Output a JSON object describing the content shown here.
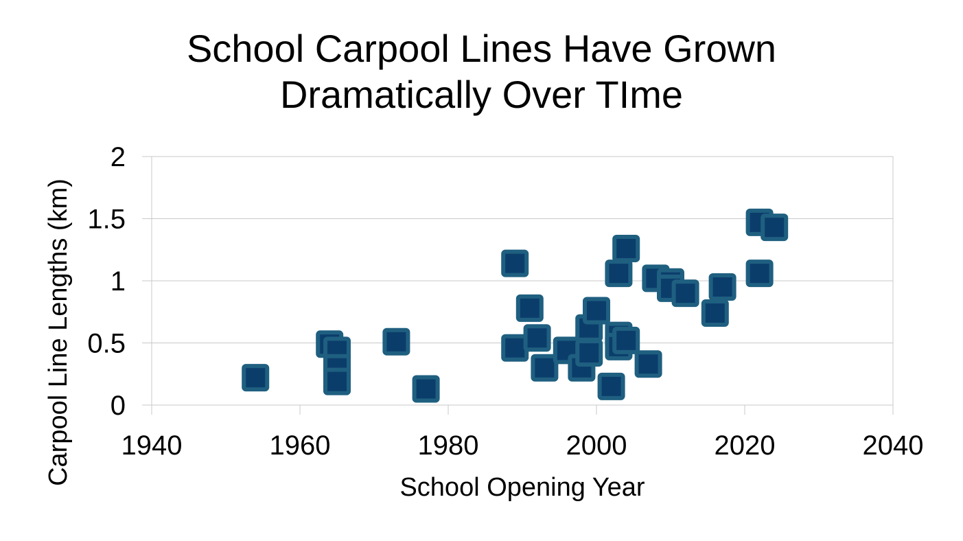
{
  "chart_data": {
    "type": "scatter",
    "title_lines": [
      "School Carpool Lines Have Grown",
      "Dramatically Over TIme"
    ],
    "xlabel": "School Opening Year",
    "ylabel": "Carpool Line Lengths (km)",
    "xlim": [
      1940,
      2040
    ],
    "ylim": [
      0,
      2
    ],
    "xticks": [
      "1940",
      "1960",
      "1980",
      "2000",
      "2020",
      "2040"
    ],
    "yticks": [
      "0",
      "0.5",
      "1",
      "1.5",
      "2"
    ],
    "grid": "horizontal",
    "legend": "none",
    "marker": "square",
    "marker_color": "#0b3d6b",
    "marker_edge_color": "#1f5f80",
    "gridline_color": "#c8c8c8",
    "points": [
      {
        "x": 1954,
        "y": 0.22
      },
      {
        "x": 1964,
        "y": 0.49
      },
      {
        "x": 1965,
        "y": 0.44
      },
      {
        "x": 1965,
        "y": 0.3
      },
      {
        "x": 1965,
        "y": 0.19
      },
      {
        "x": 1973,
        "y": 0.51
      },
      {
        "x": 1977,
        "y": 0.13
      },
      {
        "x": 1989,
        "y": 1.14
      },
      {
        "x": 1989,
        "y": 0.46
      },
      {
        "x": 1991,
        "y": 0.78
      },
      {
        "x": 1992,
        "y": 0.54
      },
      {
        "x": 1993,
        "y": 0.3
      },
      {
        "x": 1996,
        "y": 0.44
      },
      {
        "x": 1998,
        "y": 0.3
      },
      {
        "x": 1999,
        "y": 0.62
      },
      {
        "x": 1999,
        "y": 0.42
      },
      {
        "x": 2000,
        "y": 0.76
      },
      {
        "x": 2002,
        "y": 0.15
      },
      {
        "x": 2003,
        "y": 1.06
      },
      {
        "x": 2003,
        "y": 0.56
      },
      {
        "x": 2003,
        "y": 0.47
      },
      {
        "x": 2004,
        "y": 1.26
      },
      {
        "x": 2004,
        "y": 0.52
      },
      {
        "x": 2007,
        "y": 0.33
      },
      {
        "x": 2008,
        "y": 1.02
      },
      {
        "x": 2010,
        "y": 0.99
      },
      {
        "x": 2010,
        "y": 0.94
      },
      {
        "x": 2012,
        "y": 0.9
      },
      {
        "x": 2016,
        "y": 0.74
      },
      {
        "x": 2017,
        "y": 0.95
      },
      {
        "x": 2022,
        "y": 1.47
      },
      {
        "x": 2022,
        "y": 1.06
      },
      {
        "x": 2024,
        "y": 1.43
      }
    ]
  }
}
